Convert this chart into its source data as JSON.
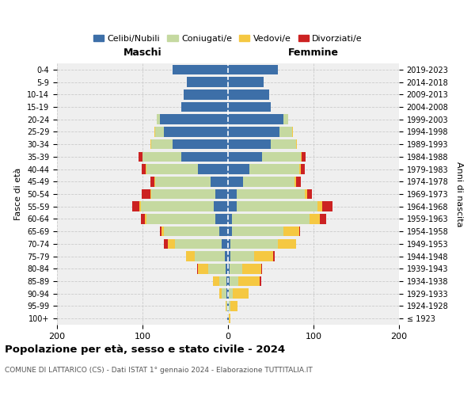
{
  "age_groups": [
    "100+",
    "95-99",
    "90-94",
    "85-89",
    "80-84",
    "75-79",
    "70-74",
    "65-69",
    "60-64",
    "55-59",
    "50-54",
    "45-49",
    "40-44",
    "35-39",
    "30-34",
    "25-29",
    "20-24",
    "15-19",
    "10-14",
    "5-9",
    "0-4"
  ],
  "birth_years": [
    "≤ 1923",
    "1924-1928",
    "1929-1933",
    "1934-1938",
    "1939-1943",
    "1944-1948",
    "1949-1953",
    "1954-1958",
    "1959-1963",
    "1964-1968",
    "1969-1973",
    "1974-1978",
    "1979-1983",
    "1984-1988",
    "1989-1993",
    "1994-1998",
    "1999-2003",
    "2004-2008",
    "2009-2013",
    "2014-2018",
    "2019-2023"
  ],
  "colors": {
    "celibi": "#3d6fa8",
    "coniugati": "#c5d9a0",
    "vedovi": "#f5c842",
    "divorziati": "#cc2222"
  },
  "maschi": {
    "celibi": [
      1,
      1,
      2,
      2,
      3,
      4,
      7,
      10,
      15,
      17,
      15,
      20,
      35,
      55,
      65,
      75,
      80,
      55,
      52,
      48,
      65
    ],
    "coniugati": [
      0,
      1,
      5,
      8,
      20,
      35,
      55,
      65,
      80,
      85,
      75,
      65,
      60,
      45,
      25,
      10,
      3,
      0,
      0,
      0,
      0
    ],
    "vedovi": [
      0,
      1,
      3,
      8,
      12,
      10,
      8,
      3,
      2,
      2,
      1,
      1,
      1,
      0,
      1,
      1,
      0,
      0,
      0,
      0,
      0
    ],
    "divorziati": [
      0,
      0,
      0,
      0,
      1,
      0,
      5,
      2,
      5,
      8,
      10,
      5,
      5,
      5,
      0,
      0,
      0,
      0,
      0,
      0,
      0
    ]
  },
  "femmine": {
    "celibi": [
      1,
      1,
      1,
      2,
      2,
      3,
      3,
      5,
      5,
      10,
      10,
      18,
      25,
      40,
      50,
      60,
      65,
      50,
      48,
      42,
      58
    ],
    "coniugati": [
      0,
      2,
      5,
      10,
      15,
      28,
      55,
      60,
      90,
      95,
      80,
      60,
      58,
      45,
      30,
      15,
      5,
      0,
      0,
      0,
      0
    ],
    "vedovi": [
      2,
      8,
      18,
      25,
      22,
      22,
      22,
      18,
      12,
      5,
      3,
      2,
      2,
      1,
      1,
      1,
      0,
      0,
      0,
      0,
      0
    ],
    "divorziati": [
      0,
      0,
      0,
      2,
      1,
      2,
      0,
      1,
      8,
      12,
      5,
      5,
      5,
      5,
      0,
      0,
      0,
      0,
      0,
      0,
      0
    ]
  },
  "xlim": 200,
  "title_main": "Popolazione per età, sesso e stato civile - 2024",
  "title_sub": "COMUNE DI LATTARICO (CS) - Dati ISTAT 1° gennaio 2024 - Elaborazione TUTTITALIA.IT",
  "xlabel_left": "Maschi",
  "xlabel_right": "Femmine",
  "ylabel_left": "Fasce di età",
  "ylabel_right": "Anni di nascita",
  "legend_labels": [
    "Celibi/Nubili",
    "Coniugati/e",
    "Vedovi/e",
    "Divorziati/e"
  ],
  "bg_color": "#ffffff",
  "plot_bg_color": "#efefef",
  "grid_color": "#cccccc"
}
